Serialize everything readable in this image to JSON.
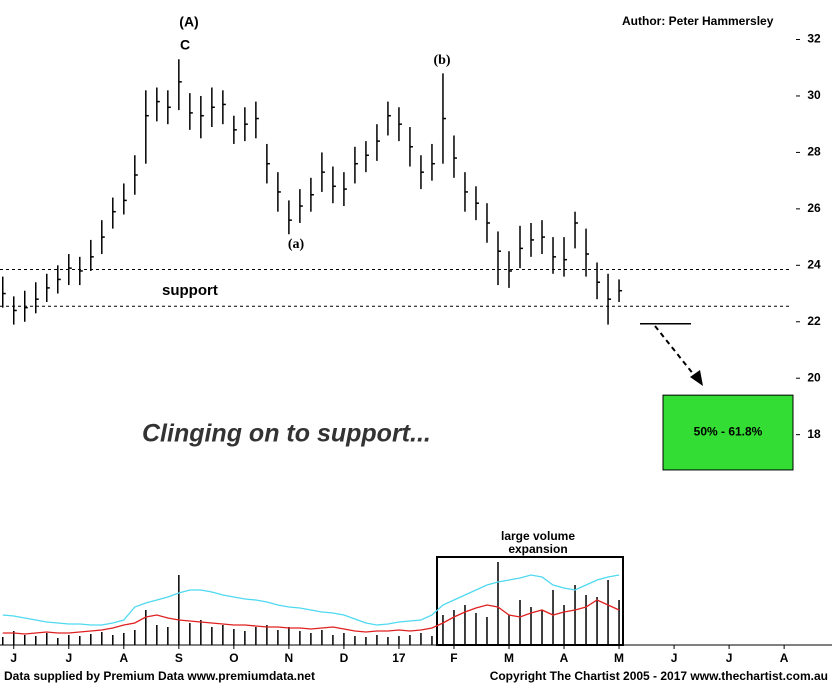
{
  "chart_data": {
    "type": "ohlc",
    "author": "Author: Peter Hammersley",
    "headline": "Clinging on to support...",
    "annotations": {
      "wave_A": "(A)",
      "wave_C": "C",
      "wave_b": "(b)",
      "wave_a": "(a)",
      "support": "support",
      "volume_note": [
        "large volume",
        "expansion"
      ]
    },
    "footer_left": "Data supplied by Premium Data www.premiumdata.net",
    "footer_right": "Copyright The Chartist 2005 - 2017 www.thechartist.com.au",
    "color": "#000000",
    "x": [
      -0.2,
      0,
      0.2,
      0.4,
      0.6,
      0.8,
      1,
      1.2,
      1.4,
      1.6,
      1.8,
      2,
      2.2,
      2.4,
      2.6,
      2.8,
      3,
      3.2,
      3.4,
      3.6,
      3.8,
      4,
      4.2,
      4.4,
      4.6,
      4.8,
      5,
      5.2,
      5.4,
      5.6,
      5.8,
      6,
      6.2,
      6.4,
      6.6,
      6.8,
      7,
      7.2,
      7.4,
      7.6,
      7.8,
      8,
      8.2,
      8.4,
      8.6,
      8.8,
      9,
      9.2,
      9.4,
      9.6,
      9.8,
      10,
      10.2,
      10.4,
      10.6,
      10.8,
      11
    ],
    "high": [
      23.6,
      22.9,
      23.1,
      23.4,
      23.7,
      24.0,
      24.4,
      24.3,
      24.9,
      25.6,
      26.4,
      26.9,
      27.9,
      30.2,
      30.3,
      30.2,
      31.3,
      30.1,
      30.0,
      30.3,
      30.2,
      29.3,
      29.6,
      29.8,
      28.3,
      27.3,
      26.3,
      26.7,
      27.1,
      28.0,
      27.5,
      27.3,
      28.2,
      28.4,
      29.0,
      29.8,
      29.6,
      28.9,
      27.9,
      28.3,
      30.8,
      28.6,
      27.3,
      26.8,
      26.2,
      25.2,
      24.5,
      25.4,
      25.5,
      25.6,
      25.0,
      25.0,
      25.9,
      25.3,
      24.1,
      23.7,
      23.5
    ],
    "low": [
      22.5,
      21.9,
      22.0,
      22.3,
      22.7,
      23.0,
      23.3,
      23.3,
      23.8,
      24.4,
      25.3,
      25.8,
      26.5,
      27.6,
      29.1,
      29.0,
      29.5,
      28.8,
      28.5,
      28.9,
      29.0,
      28.3,
      28.4,
      28.5,
      26.9,
      25.9,
      25.1,
      25.5,
      25.9,
      26.6,
      26.2,
      26.1,
      26.9,
      27.3,
      27.7,
      28.6,
      28.4,
      27.5,
      26.7,
      27.0,
      27.6,
      27.1,
      25.9,
      25.6,
      24.8,
      23.3,
      23.2,
      23.9,
      24.3,
      24.4,
      23.7,
      23.6,
      24.6,
      23.6,
      22.8,
      21.9,
      22.7
    ],
    "close": [
      23.0,
      22.4,
      22.5,
      22.8,
      23.2,
      23.5,
      23.9,
      23.8,
      24.3,
      25.0,
      25.9,
      26.3,
      27.2,
      29.3,
      29.8,
      29.6,
      30.5,
      29.4,
      29.3,
      29.6,
      29.7,
      28.8,
      29.0,
      29.2,
      27.6,
      26.6,
      25.6,
      26.1,
      26.5,
      27.3,
      26.8,
      26.7,
      27.6,
      27.9,
      28.4,
      29.3,
      29.0,
      28.2,
      27.3,
      27.6,
      29.2,
      27.8,
      26.6,
      26.2,
      25.5,
      24.5,
      23.8,
      24.6,
      24.9,
      25.0,
      24.3,
      24.2,
      25.5,
      24.4,
      23.4,
      22.8,
      23.1
    ],
    "xlim": [
      -0.25,
      14.87
    ],
    "xticks": [
      {
        "value": 0,
        "label": "J"
      },
      {
        "value": 1,
        "label": "J"
      },
      {
        "value": 2,
        "label": "A"
      },
      {
        "value": 3,
        "label": "S"
      },
      {
        "value": 4,
        "label": "O"
      },
      {
        "value": 5,
        "label": "N"
      },
      {
        "value": 6,
        "label": "D"
      },
      {
        "value": 7,
        "label": "17"
      },
      {
        "value": 8,
        "label": "F"
      },
      {
        "value": 9,
        "label": "M"
      },
      {
        "value": 10,
        "label": "A"
      },
      {
        "value": 11,
        "label": "M"
      },
      {
        "value": 12,
        "label": "J"
      },
      {
        "value": 13,
        "label": "J"
      },
      {
        "value": 14,
        "label": "A"
      }
    ],
    "ylim": [
      16.5,
      33.4
    ],
    "yticks": [
      18,
      20,
      22,
      24,
      26,
      28,
      30,
      32
    ],
    "support_levels": [
      23.85,
      22.55
    ],
    "target_level": 21.93,
    "target_zone": {
      "label": "50% - 61.8%",
      "range": [
        16.75,
        19.4
      ],
      "color": "#33dd33"
    },
    "volume": {
      "ylim": [
        0,
        100
      ],
      "color": "#000000",
      "values": [
        8,
        14,
        10,
        9,
        12,
        7,
        10,
        9,
        11,
        13,
        10,
        12,
        15,
        35,
        20,
        18,
        70,
        22,
        25,
        18,
        20,
        16,
        14,
        18,
        20,
        15,
        18,
        14,
        12,
        15,
        10,
        12,
        9,
        8,
        10,
        8,
        9,
        10,
        12,
        9,
        30,
        35,
        40,
        32,
        28,
        83,
        30,
        45,
        38,
        35,
        55,
        40,
        60,
        50,
        48,
        65,
        45
      ],
      "averages": [
        {
          "color": "#4fd9f0",
          "values": [
            30,
            29,
            27,
            25,
            23,
            22,
            21,
            21,
            20,
            20,
            22,
            25,
            38,
            42,
            45,
            48,
            52,
            55,
            55,
            53,
            50,
            48,
            46,
            45,
            43,
            40,
            38,
            37,
            35,
            33,
            32,
            30,
            26,
            22,
            20,
            21,
            23,
            24,
            25,
            30,
            40,
            45,
            50,
            55,
            60,
            63,
            65,
            67,
            70,
            68,
            60,
            57,
            55,
            60,
            65,
            68,
            70
          ]
        },
        {
          "color": "#e02020",
          "values": [
            12,
            12,
            11,
            12,
            13,
            12,
            12,
            13,
            14,
            15,
            17,
            20,
            22,
            28,
            30,
            27,
            25,
            24,
            23,
            22,
            21,
            20,
            20,
            19,
            18,
            18,
            17,
            17,
            16,
            17,
            18,
            16,
            14,
            13,
            14,
            14,
            15,
            14,
            15,
            17,
            22,
            28,
            33,
            37,
            40,
            38,
            30,
            28,
            32,
            35,
            30,
            33,
            35,
            38,
            45,
            40,
            35
          ]
        }
      ]
    }
  }
}
